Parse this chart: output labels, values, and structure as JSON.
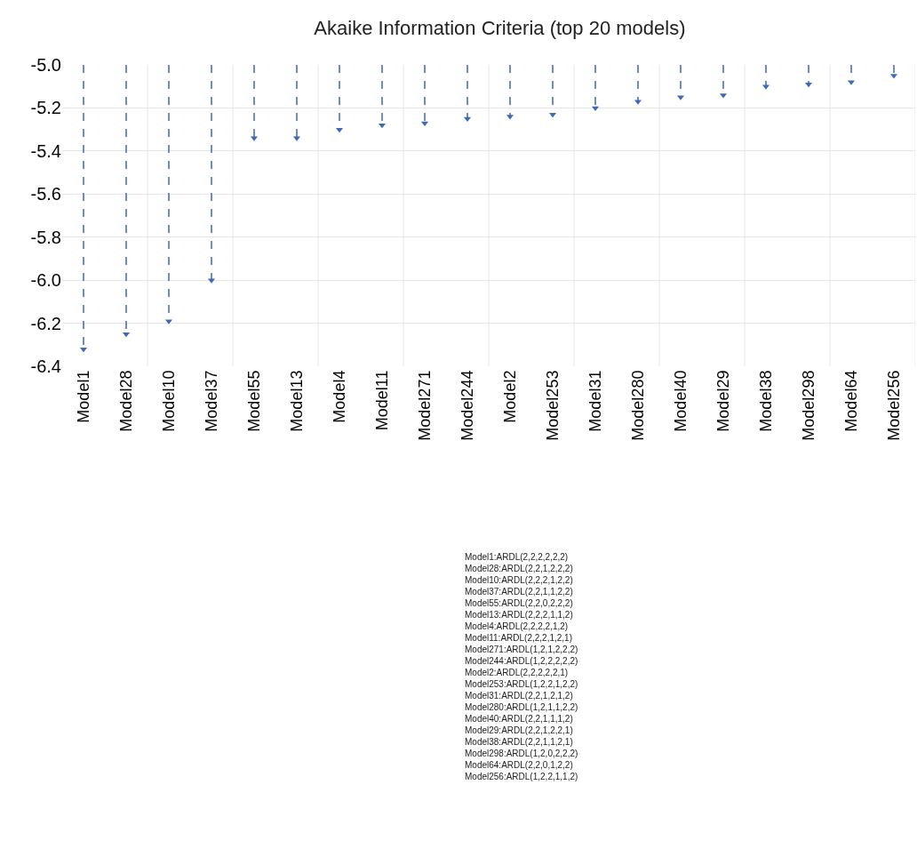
{
  "chart_data": {
    "type": "lollipop",
    "title": "Akaike Information Criteria (top 20 models)",
    "categories": [
      "Model1",
      "Model28",
      "Model10",
      "Model37",
      "Model55",
      "Model13",
      "Model4",
      "Model11",
      "Model271",
      "Model244",
      "Model2",
      "Model253",
      "Model31",
      "Model280",
      "Model40",
      "Model29",
      "Model38",
      "Model298",
      "Model64",
      "Model256"
    ],
    "values": [
      -6.32,
      -6.25,
      -6.19,
      -6.0,
      -5.34,
      -5.34,
      -5.3,
      -5.28,
      -5.27,
      -5.25,
      -5.24,
      -5.23,
      -5.2,
      -5.17,
      -5.15,
      -5.14,
      -5.1,
      -5.09,
      -5.08,
      -5.05
    ],
    "color": "#3c6ab4",
    "ylim": [
      -6.4,
      -5.0
    ],
    "yticks": [
      {
        "value": -6.4,
        "label": "-6.4"
      },
      {
        "value": -6.2,
        "label": "-6.2"
      },
      {
        "value": -6.0,
        "label": "-6.0"
      },
      {
        "value": -5.8,
        "label": "-5.8"
      },
      {
        "value": -5.6,
        "label": "-5.6"
      },
      {
        "value": -5.4,
        "label": "-5.4"
      },
      {
        "value": -5.2,
        "label": "-5.2"
      },
      {
        "value": -5.0,
        "label": "-5.0"
      }
    ],
    "grid": true,
    "marker": "triangle",
    "line_style": "dashed",
    "annotations": [
      "Model1:ARDL(2,2,2,2,2,2)",
      "Model28:ARDL(2,2,1,2,2,2)",
      "Model10:ARDL(2,2,2,1,2,2)",
      "Model37:ARDL(2,2,1,1,2,2)",
      "Model55:ARDL(2,2,0,2,2,2)",
      "Model13:ARDL(2,2,2,1,1,2)",
      "Model4:ARDL(2,2,2,2,1,2)",
      "Model11:ARDL(2,2,2,1,2,1)",
      "Model271:ARDL(1,2,1,2,2,2)",
      "Model244:ARDL(1,2,2,2,2,2)",
      "Model2:ARDL(2,2,2,2,2,1)",
      "Model253:ARDL(1,2,2,1,2,2)",
      "Model31:ARDL(2,2,1,2,1,2)",
      "Model280:ARDL(1,2,1,1,2,2)",
      "Model40:ARDL(2,2,1,1,1,2)",
      "Model29:ARDL(2,2,1,2,2,1)",
      "Model38:ARDL(2,2,1,1,2,1)",
      "Model298:ARDL(1,2,0,2,2,2)",
      "Model64:ARDL(2,2,0,1,2,2)",
      "Model256:ARDL(1,2,2,1,1,2)"
    ]
  }
}
